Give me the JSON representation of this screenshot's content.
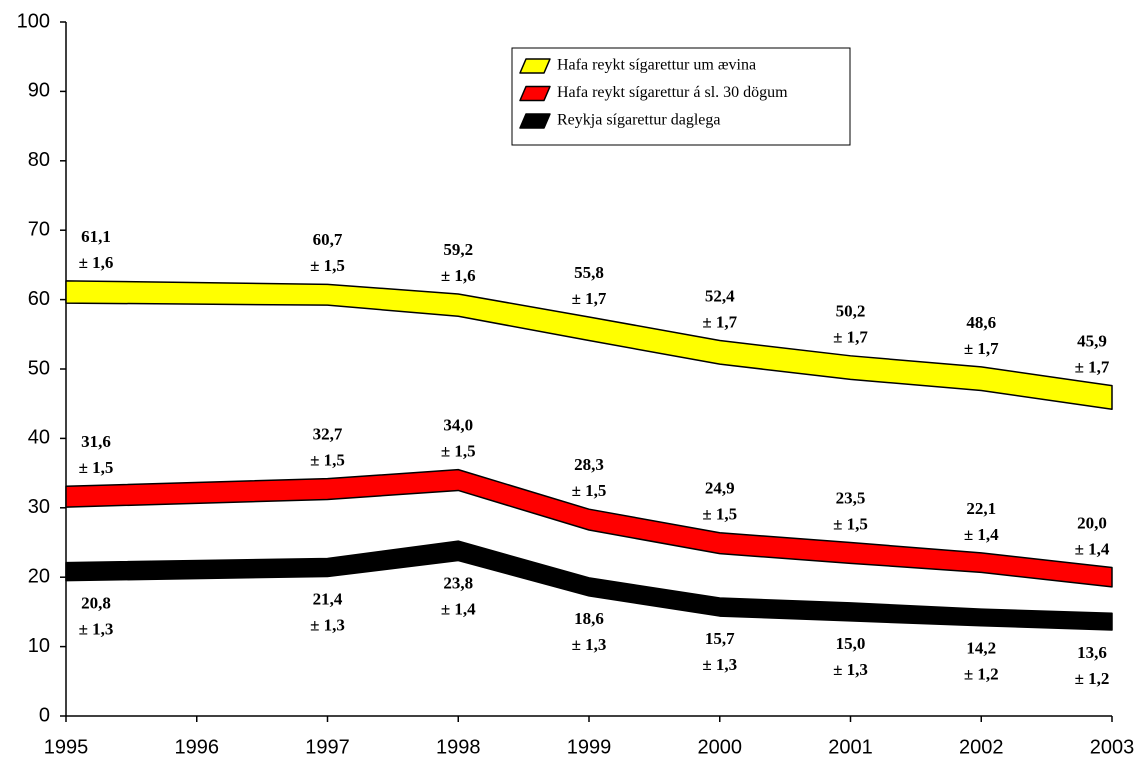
{
  "chart_data": {
    "type": "band",
    "x": [
      1995,
      1997,
      1998,
      1999,
      2000,
      2001,
      2002,
      2003
    ],
    "xlim": [
      1995,
      2003
    ],
    "xticks": [
      1995,
      1996,
      1997,
      1998,
      1999,
      2000,
      2001,
      2002,
      2003
    ],
    "ylim": [
      0,
      100
    ],
    "yticks": [
      0,
      10,
      20,
      30,
      40,
      50,
      60,
      70,
      80,
      90,
      100
    ],
    "series": [
      {
        "name": "Hafa reykt sígarettur um ævina",
        "color": "#ffff00",
        "values": [
          61.1,
          60.7,
          59.2,
          55.8,
          52.4,
          50.2,
          48.6,
          45.9
        ],
        "value_labels": [
          "61,1",
          "60,7",
          "59,2",
          "55,8",
          "52,4",
          "50,2",
          "48,6",
          "45,9"
        ],
        "errors": [
          1.6,
          1.5,
          1.6,
          1.7,
          1.7,
          1.7,
          1.7,
          1.7
        ],
        "error_labels": [
          "± 1,6",
          "± 1,5",
          "± 1,6",
          "± 1,7",
          "± 1,7",
          "± 1,7",
          "± 1,7",
          "± 1,7"
        ]
      },
      {
        "name": "Hafa reykt sígarettur á sl. 30 dögum",
        "color": "#ff0000",
        "values": [
          31.6,
          32.7,
          34.0,
          28.3,
          24.9,
          23.5,
          22.1,
          20.0
        ],
        "value_labels": [
          "31,6",
          "32,7",
          "34,0",
          "28,3",
          "24,9",
          "23,5",
          "22,1",
          "20,0"
        ],
        "errors": [
          1.5,
          1.5,
          1.5,
          1.5,
          1.5,
          1.5,
          1.4,
          1.4
        ],
        "error_labels": [
          "± 1,5",
          "± 1,5",
          "± 1,5",
          "± 1,5",
          "± 1,5",
          "± 1,5",
          "± 1,4",
          "± 1,4"
        ]
      },
      {
        "name": "Reykja sígarettur daglega",
        "color": "#000000",
        "values": [
          20.8,
          21.4,
          23.8,
          18.6,
          15.7,
          15.0,
          14.2,
          13.6
        ],
        "value_labels": [
          "20,8",
          "21,4",
          "23,8",
          "18,6",
          "15,7",
          "15,0",
          "14,2",
          "13,6"
        ],
        "errors": [
          1.3,
          1.3,
          1.4,
          1.3,
          1.3,
          1.3,
          1.2,
          1.2
        ],
        "error_labels": [
          "± 1,3",
          "± 1,3",
          "± 1,4",
          "± 1,3",
          "± 1,3",
          "± 1,3",
          "± 1,2",
          "± 1,2"
        ]
      }
    ]
  }
}
